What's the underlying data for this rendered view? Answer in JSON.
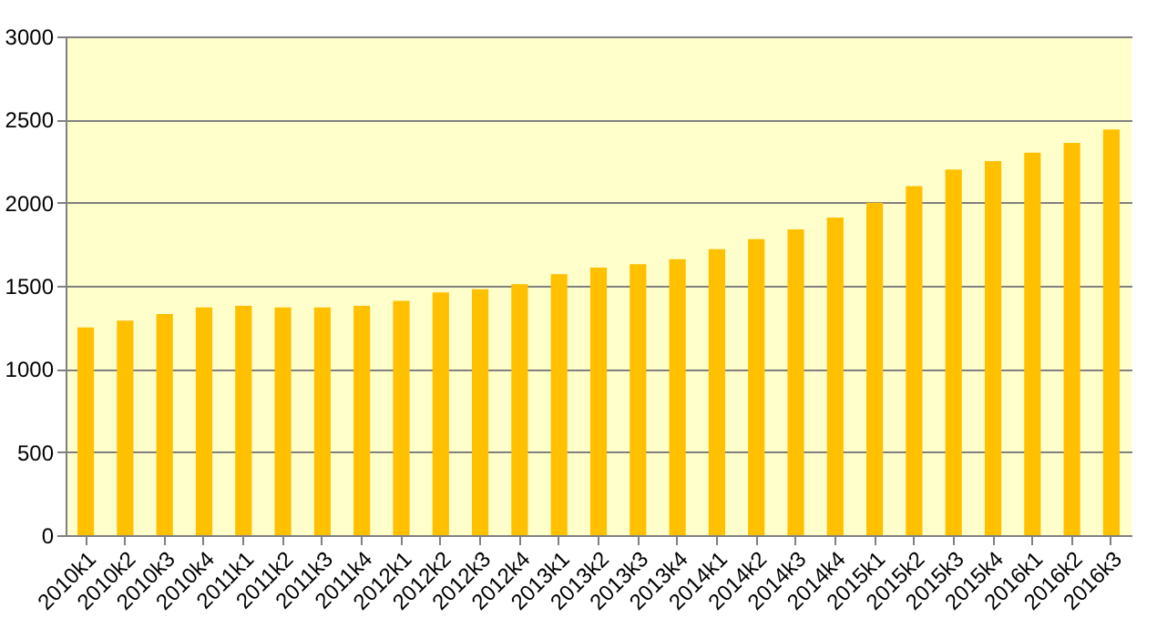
{
  "chart_data": {
    "type": "bar",
    "categories": [
      "2010k1",
      "2010k2",
      "2010k3",
      "2010k4",
      "2011k1",
      "2011k2",
      "2011k3",
      "2011k4",
      "2012k1",
      "2012k2",
      "2012k3",
      "2012k4",
      "2013k1",
      "2013k2",
      "2013k3",
      "2013k4",
      "2014k1",
      "2014k2",
      "2014k3",
      "2014k4",
      "2015k1",
      "2015k2",
      "2015k3",
      "2015k4",
      "2016k1",
      "2016k2",
      "2016k3"
    ],
    "values": [
      1250,
      1290,
      1330,
      1370,
      1380,
      1370,
      1370,
      1380,
      1410,
      1460,
      1480,
      1510,
      1570,
      1610,
      1630,
      1660,
      1720,
      1780,
      1840,
      1910,
      2000,
      2100,
      2200,
      2250,
      2300,
      2360,
      2440
    ],
    "color": "#ffc000",
    "ylim": [
      0,
      3000
    ],
    "yticks": [
      0,
      500,
      1000,
      1500,
      2000,
      2500,
      3000
    ],
    "grid": "y"
  }
}
